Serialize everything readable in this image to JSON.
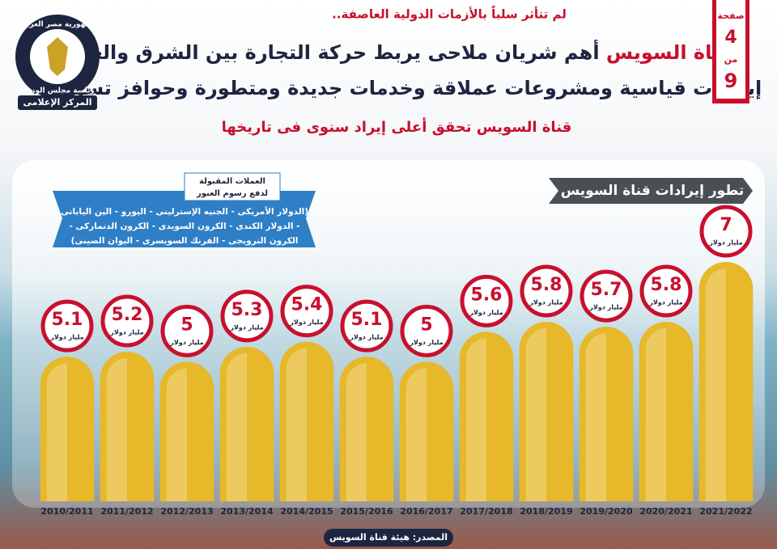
{
  "header": {
    "tagline": "لم تتأثر سلباً بالأزمات الدولية العاصفة..",
    "title_highlight": "قناة السويس",
    "title_rest": "أهم شريان ملاحى يربط حركة التجارة بين الشرق والغرب",
    "title_line2": "إيرادات قياسية ومشروعات عملاقة وخدمات جديدة ومتطورة وحوافز تسويقية",
    "subtitle": "قناة السويس تحقق أعلى إيراد سنوى فى تاريخها"
  },
  "page": {
    "label": "صفحة",
    "number": 4,
    "of_label": "من",
    "total": 9
  },
  "logo": {
    "lines": [
      "جمهورية مصر العربية",
      "رئاسة مجلس الوزراء",
      "المركز الإعلامى"
    ]
  },
  "currencies": {
    "title_lines": [
      "العملات المقبولة",
      "لدفع رسوم العبور"
    ],
    "lines": [
      "(الدولار الأمريكى - الجنيه الإسترلينى - اليورو - الين اليابانى",
      "- الدولار الكندى - الكرون السويدى - الكرون الدنماركى -",
      "الكرون النرويجى - الفرنك السويسرى - اليوان الصينى)"
    ]
  },
  "source": "المصدر: هيئة قناة السويس",
  "chart_data": {
    "type": "bar",
    "title": "تطور إيرادات قناة السويس",
    "categories": [
      "2010/2011",
      "2011/2012",
      "2012/2013",
      "2013/2014",
      "2014/2015",
      "2015/2016",
      "2016/2017",
      "2017/2018",
      "2018/2019",
      "2019/2020",
      "2020/2021",
      "2021/2022"
    ],
    "values": [
      5.1,
      5.2,
      5,
      5.3,
      5.4,
      5.1,
      5,
      5.6,
      5.8,
      5.7,
      5.8,
      7
    ],
    "unit": "مليار دولار",
    "color": "#e6b82a",
    "ylim": [
      2.2,
      8.2
    ]
  }
}
